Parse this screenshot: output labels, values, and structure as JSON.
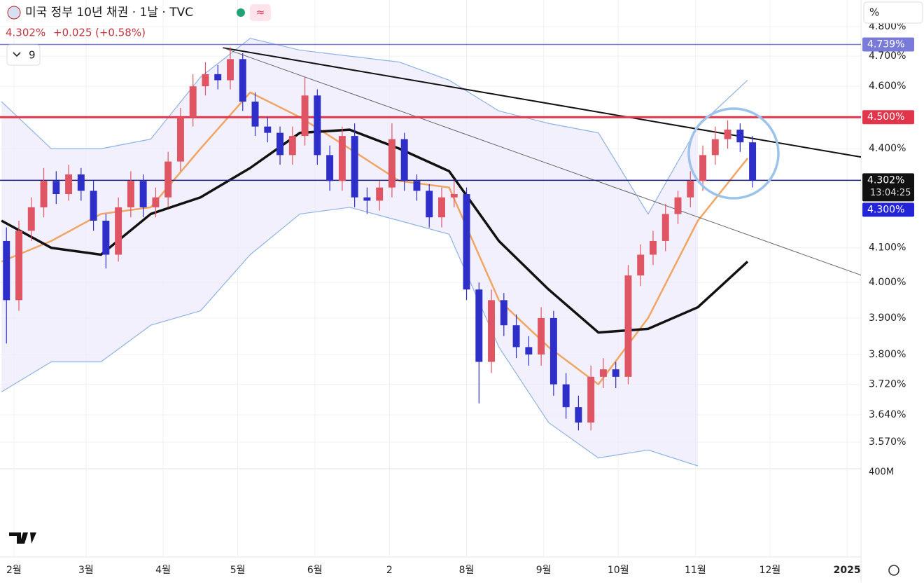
{
  "header": {
    "symbol": "미국 정부 10년 채권 · 1날 · TVC",
    "last": "4.302%",
    "change": "+0.025",
    "change_pct": "(+0.58%)",
    "indicators_count": "9",
    "axis_unit": "%"
  },
  "chart_data": {
    "type": "candlestick",
    "log_scale": true,
    "grid": true,
    "up_color": "#e05563",
    "down_color": "#2e2ec8",
    "xlim": [
      26.4,
      372.6
    ],
    "ylim": [
      3.503,
      4.819
    ],
    "xticks": [
      {
        "value": 32,
        "label": "2월"
      },
      {
        "value": 61,
        "label": "3월"
      },
      {
        "value": 92,
        "label": "4월"
      },
      {
        "value": 122,
        "label": "5월"
      },
      {
        "value": 153,
        "label": "6월"
      },
      {
        "value": 183,
        "label": "2"
      },
      {
        "value": 214,
        "label": "8월"
      },
      {
        "value": 245,
        "label": "9월"
      },
      {
        "value": 275,
        "label": "10월"
      },
      {
        "value": 306,
        "label": "11월"
      },
      {
        "value": 336,
        "label": "12월"
      },
      {
        "value": 367,
        "label": "2025"
      }
    ],
    "yticks": [
      {
        "value": 4.8,
        "label": "4.800%"
      },
      {
        "value": 4.7,
        "label": "4.700%"
      },
      {
        "value": 4.6,
        "label": "4.600%"
      },
      {
        "value": 4.4,
        "label": "4.400%"
      },
      {
        "value": 4.1,
        "label": "4.100%"
      },
      {
        "value": 4.0,
        "label": "4.000%"
      },
      {
        "value": 3.9,
        "label": "3.900%"
      },
      {
        "value": 3.8,
        "label": "3.800%"
      },
      {
        "value": 3.72,
        "label": "3.720%"
      },
      {
        "value": 3.64,
        "label": "3.640%"
      },
      {
        "value": 3.57,
        "label": "3.570%"
      }
    ],
    "x": [
      29,
      34,
      39,
      44,
      49,
      54,
      59,
      64,
      69,
      74,
      79,
      84,
      89,
      94,
      99,
      104,
      109,
      114,
      119,
      124,
      129,
      134,
      139,
      144,
      149,
      154,
      159,
      164,
      169,
      174,
      179,
      184,
      189,
      194,
      199,
      204,
      209,
      214,
      219,
      224,
      229,
      234,
      239,
      244,
      249,
      254,
      259,
      264,
      269,
      274,
      279,
      284,
      289,
      294,
      299,
      304,
      309,
      314,
      319,
      324,
      329
    ],
    "open": [
      4.12,
      3.95,
      4.15,
      4.22,
      4.3,
      4.26,
      4.32,
      4.27,
      4.18,
      4.08,
      4.22,
      4.3,
      4.22,
      4.25,
      4.36,
      4.5,
      4.6,
      4.64,
      4.62,
      4.69,
      4.55,
      4.47,
      4.45,
      4.38,
      4.44,
      4.57,
      4.38,
      4.3,
      4.44,
      4.25,
      4.24,
      4.28,
      4.43,
      4.3,
      4.27,
      4.19,
      4.25,
      4.26,
      3.98,
      3.78,
      3.95,
      3.88,
      3.82,
      3.8,
      3.9,
      3.72,
      3.66,
      3.62,
      3.74,
      3.76,
      3.74,
      4.02,
      4.08,
      4.12,
      4.2,
      4.25,
      4.3,
      4.38,
      4.43,
      4.46,
      4.42
    ],
    "high": [
      4.16,
      4.18,
      4.25,
      4.34,
      4.33,
      4.35,
      4.34,
      4.3,
      4.2,
      4.25,
      4.33,
      4.32,
      4.28,
      4.39,
      4.53,
      4.64,
      4.68,
      4.67,
      4.73,
      4.71,
      4.58,
      4.5,
      4.47,
      4.47,
      4.63,
      4.59,
      4.41,
      4.47,
      4.48,
      4.28,
      4.3,
      4.48,
      4.45,
      4.32,
      4.29,
      4.28,
      4.3,
      4.28,
      4.0,
      3.98,
      3.97,
      3.91,
      3.85,
      3.93,
      3.92,
      3.75,
      3.69,
      3.77,
      3.79,
      3.78,
      4.05,
      4.11,
      4.15,
      4.23,
      4.27,
      4.33,
      4.41,
      4.47,
      4.49,
      4.48,
      4.44
    ],
    "low": [
      3.83,
      3.92,
      4.12,
      4.19,
      4.23,
      4.24,
      4.24,
      4.15,
      4.04,
      4.06,
      4.19,
      4.19,
      4.19,
      4.22,
      4.33,
      4.47,
      4.57,
      4.59,
      4.59,
      4.52,
      4.44,
      4.42,
      4.35,
      4.35,
      4.41,
      4.35,
      4.27,
      4.27,
      4.22,
      4.2,
      4.21,
      4.25,
      4.27,
      4.24,
      4.16,
      4.16,
      4.22,
      3.95,
      3.67,
      3.75,
      3.85,
      3.79,
      3.77,
      3.77,
      3.69,
      3.63,
      3.6,
      3.6,
      3.71,
      3.71,
      3.72,
      3.99,
      4.05,
      4.09,
      4.17,
      4.22,
      4.27,
      4.35,
      4.4,
      4.39,
      4.28
    ],
    "close": [
      3.95,
      4.15,
      4.22,
      4.3,
      4.26,
      4.32,
      4.27,
      4.18,
      4.08,
      4.22,
      4.3,
      4.22,
      4.25,
      4.36,
      4.5,
      4.6,
      4.64,
      4.62,
      4.69,
      4.55,
      4.47,
      4.45,
      4.38,
      4.44,
      4.57,
      4.38,
      4.3,
      4.44,
      4.25,
      4.24,
      4.28,
      4.43,
      4.3,
      4.27,
      4.19,
      4.25,
      4.26,
      3.98,
      3.78,
      3.95,
      3.88,
      3.82,
      3.8,
      3.9,
      3.72,
      3.66,
      3.62,
      3.74,
      3.76,
      3.74,
      4.02,
      4.08,
      4.12,
      4.2,
      4.25,
      4.3,
      4.38,
      4.43,
      4.46,
      4.42,
      4.302
    ],
    "band_fill": "#ece9fb",
    "overlays": [
      {
        "color": "#8fb2e6",
        "line_width": 1.2,
        "x": [
          27,
          47,
          67,
          87,
          107,
          127,
          147,
          167,
          187,
          207,
          227,
          247,
          267,
          287,
          307,
          327
        ],
        "values": [
          4.55,
          4.4,
          4.4,
          4.43,
          4.63,
          4.76,
          4.72,
          4.7,
          4.68,
          4.62,
          4.52,
          4.48,
          4.45,
          4.2,
          4.47,
          4.62
        ]
      },
      {
        "color": "#8fb2e6",
        "line_width": 1.2,
        "x": [
          27,
          47,
          67,
          87,
          107,
          127,
          147,
          167,
          187,
          207,
          227,
          247,
          267,
          287,
          307,
          327
        ],
        "values": [
          3.7,
          3.78,
          3.78,
          3.88,
          3.92,
          4.08,
          4.2,
          4.22,
          4.18,
          4.14,
          3.82,
          3.62,
          3.53,
          3.55,
          3.51,
          null
        ]
      },
      {
        "color": "#f0a565",
        "line_width": 2.5,
        "x": [
          27,
          47,
          67,
          87,
          107,
          127,
          147,
          167,
          187,
          207,
          227,
          247,
          267,
          287,
          307,
          327
        ],
        "values": [
          4.06,
          4.12,
          4.2,
          4.22,
          4.4,
          4.58,
          4.5,
          4.4,
          4.3,
          4.28,
          3.95,
          3.82,
          3.72,
          3.9,
          4.18,
          4.37
        ]
      },
      {
        "color": "#111111",
        "line_width": 3.5,
        "x": [
          27,
          47,
          67,
          87,
          107,
          127,
          147,
          167,
          187,
          207,
          227,
          247,
          267,
          287,
          307,
          327
        ],
        "values": [
          4.18,
          4.1,
          4.08,
          4.2,
          4.25,
          4.34,
          4.45,
          4.46,
          4.4,
          4.33,
          4.12,
          3.98,
          3.86,
          3.87,
          3.93,
          4.06
        ]
      }
    ],
    "trendlines": [
      {
        "color": "#111111",
        "line_width": 2,
        "x": [
          116,
          372.6
        ],
        "values": [
          4.728,
          4.374
        ]
      },
      {
        "color": "#666666",
        "line_width": 1,
        "x": [
          116,
          372.6
        ],
        "values": [
          4.728,
          4.021
        ]
      }
    ],
    "hlines": [
      {
        "value": 4.739,
        "label": "4.739%",
        "color": "#7a7ad8",
        "line_width": 1.5
      },
      {
        "value": 4.5,
        "label": "4.500%",
        "color": "#e0354a",
        "line_width": 3
      },
      {
        "value": 4.302,
        "label": "4.302%",
        "color": "#1c1c7a",
        "line_width": 1.5,
        "countdown": "13:04:25"
      }
    ],
    "price_tag": {
      "value": 4.3,
      "label": "4.300%",
      "color": "#2323d8"
    },
    "volume_label": "400M"
  }
}
